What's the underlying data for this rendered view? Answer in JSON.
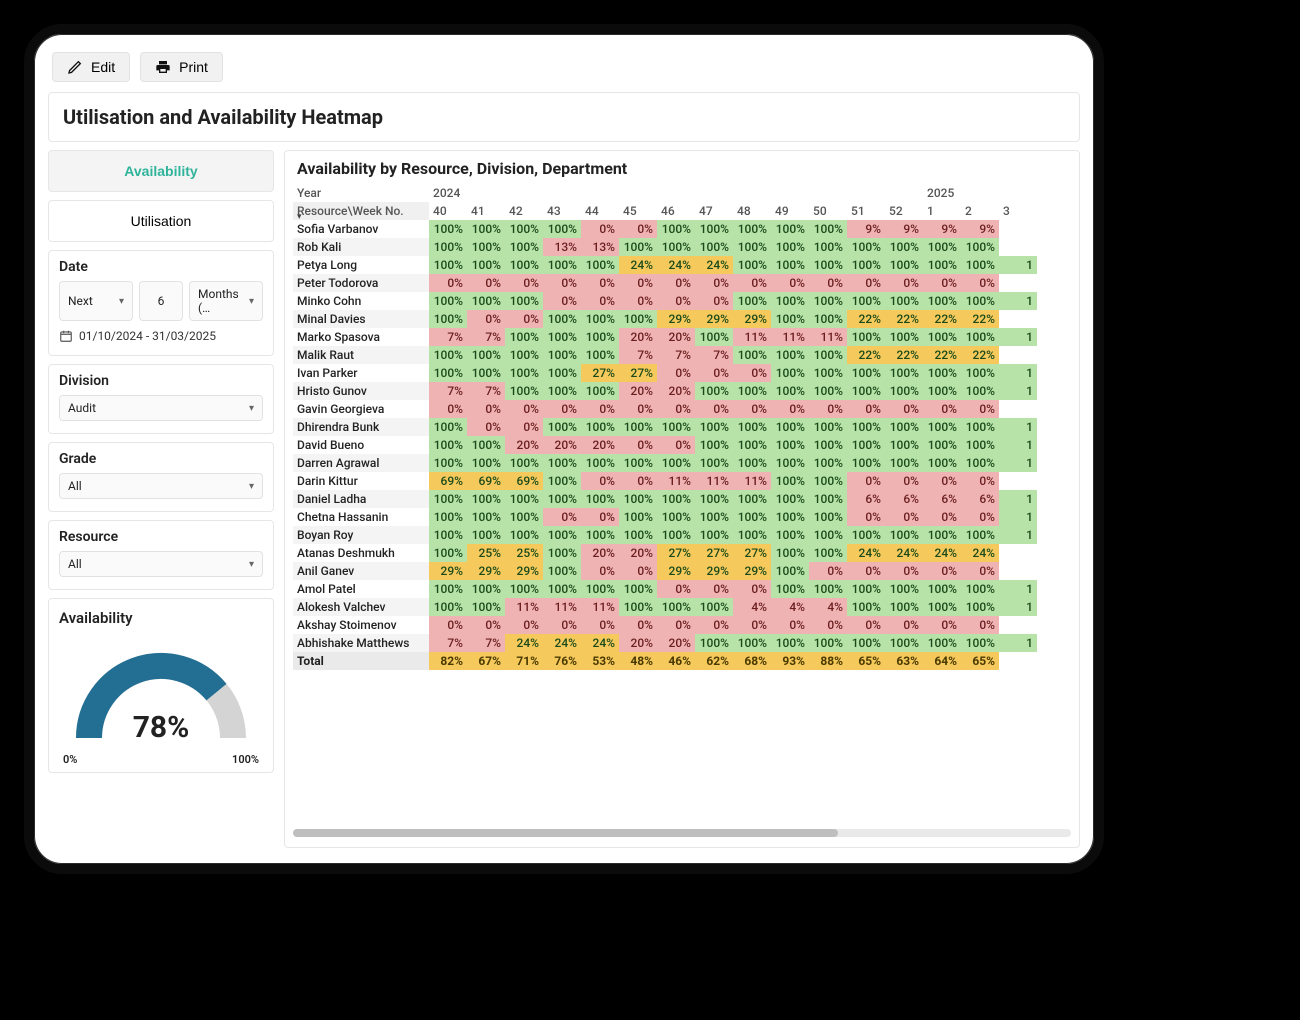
{
  "toolbar": {
    "edit": "Edit",
    "print": "Print"
  },
  "page_title": "Utilisation and Availability Heatmap",
  "tabs": {
    "availability": "Availability",
    "utilisation": "Utilisation",
    "active": "availability"
  },
  "filters": {
    "date_label": "Date",
    "date_rel": "Next",
    "date_n": "6",
    "date_unit": "Months (…",
    "date_range": "01/10/2024 - 31/03/2025",
    "division_label": "Division",
    "division_value": "Audit",
    "grade_label": "Grade",
    "grade_value": "All",
    "resource_label": "Resource",
    "resource_value": "All"
  },
  "gauge": {
    "title": "Availability",
    "value_pct": 78,
    "value_label": "78%",
    "min_label": "0%",
    "max_label": "100%",
    "arc_color": "#226f93",
    "track_color": "#d4d4d4"
  },
  "heatmap": {
    "title": "Availability by Resource, Division, Department",
    "year_label": "Year",
    "rowhead_label": "Resource\\Week No.",
    "years": [
      {
        "label": "2024",
        "span": 13
      },
      {
        "label": "2025",
        "span": 3
      }
    ],
    "weeks": [
      "40",
      "41",
      "42",
      "43",
      "44",
      "45",
      "46",
      "47",
      "48",
      "49",
      "50",
      "51",
      "52",
      "1",
      "2",
      "3"
    ],
    "colors": {
      "green": "#b7e3a8",
      "red": "#f0b3b3",
      "amber": "#f5c95b",
      "text_green": "#1a4a1a",
      "text_red": "#6a1e1e"
    },
    "thresholds": {
      "red_max": 20,
      "amber_max": 70
    },
    "rows": [
      {
        "name": "Sofia Varbanov",
        "vals": [
          100,
          100,
          100,
          100,
          0,
          0,
          100,
          100,
          100,
          100,
          100,
          9,
          9,
          9,
          9,
          null
        ]
      },
      {
        "name": "Rob Kali",
        "vals": [
          100,
          100,
          100,
          13,
          13,
          100,
          100,
          100,
          100,
          100,
          100,
          100,
          100,
          100,
          100,
          null
        ]
      },
      {
        "name": "Petya Long",
        "vals": [
          100,
          100,
          100,
          100,
          100,
          24,
          24,
          24,
          100,
          100,
          100,
          100,
          100,
          100,
          100,
          1
        ]
      },
      {
        "name": "Peter Todorova",
        "vals": [
          0,
          0,
          0,
          0,
          0,
          0,
          0,
          0,
          0,
          0,
          0,
          0,
          0,
          0,
          0,
          null
        ]
      },
      {
        "name": "Minko Cohn",
        "vals": [
          100,
          100,
          100,
          0,
          0,
          0,
          0,
          0,
          100,
          100,
          100,
          100,
          100,
          100,
          100,
          1
        ]
      },
      {
        "name": "Minal Davies",
        "vals": [
          100,
          0,
          0,
          100,
          100,
          100,
          29,
          29,
          29,
          100,
          100,
          22,
          22,
          22,
          22,
          null
        ]
      },
      {
        "name": "Marko Spasova",
        "vals": [
          7,
          7,
          100,
          100,
          100,
          20,
          20,
          100,
          11,
          11,
          11,
          100,
          100,
          100,
          100,
          1
        ]
      },
      {
        "name": "Malik Raut",
        "vals": [
          100,
          100,
          100,
          100,
          100,
          7,
          7,
          7,
          100,
          100,
          100,
          22,
          22,
          22,
          22,
          null
        ]
      },
      {
        "name": "Ivan Parker",
        "vals": [
          100,
          100,
          100,
          100,
          27,
          27,
          0,
          0,
          0,
          100,
          100,
          100,
          100,
          100,
          100,
          1
        ]
      },
      {
        "name": "Hristo Gunov",
        "vals": [
          7,
          7,
          100,
          100,
          100,
          20,
          20,
          100,
          100,
          100,
          100,
          100,
          100,
          100,
          100,
          1
        ]
      },
      {
        "name": "Gavin Georgieva",
        "vals": [
          0,
          0,
          0,
          0,
          0,
          0,
          0,
          0,
          0,
          0,
          0,
          0,
          0,
          0,
          0,
          null
        ]
      },
      {
        "name": "Dhirendra Bunk",
        "vals": [
          100,
          0,
          0,
          100,
          100,
          100,
          100,
          100,
          100,
          100,
          100,
          100,
          100,
          100,
          100,
          1
        ]
      },
      {
        "name": "David Bueno",
        "vals": [
          100,
          100,
          20,
          20,
          20,
          0,
          0,
          100,
          100,
          100,
          100,
          100,
          100,
          100,
          100,
          1
        ]
      },
      {
        "name": "Darren Agrawal",
        "vals": [
          100,
          100,
          100,
          100,
          100,
          100,
          100,
          100,
          100,
          100,
          100,
          100,
          100,
          100,
          100,
          1
        ]
      },
      {
        "name": "Darin Kittur",
        "vals": [
          69,
          69,
          69,
          100,
          0,
          0,
          11,
          11,
          11,
          100,
          100,
          0,
          0,
          0,
          0,
          null
        ]
      },
      {
        "name": "Daniel Ladha",
        "vals": [
          100,
          100,
          100,
          100,
          100,
          100,
          100,
          100,
          100,
          100,
          100,
          6,
          6,
          6,
          6,
          1
        ]
      },
      {
        "name": "Chetna Hassanin",
        "vals": [
          100,
          100,
          100,
          0,
          0,
          100,
          100,
          100,
          100,
          100,
          100,
          0,
          0,
          0,
          0,
          1
        ]
      },
      {
        "name": "Boyan Roy",
        "vals": [
          100,
          100,
          100,
          100,
          100,
          100,
          100,
          100,
          100,
          100,
          100,
          100,
          100,
          100,
          100,
          1
        ]
      },
      {
        "name": "Atanas Deshmukh",
        "vals": [
          100,
          25,
          25,
          100,
          20,
          20,
          27,
          27,
          27,
          100,
          100,
          24,
          24,
          24,
          24,
          null
        ]
      },
      {
        "name": "Anil Ganev",
        "vals": [
          29,
          29,
          29,
          100,
          0,
          0,
          29,
          29,
          29,
          100,
          0,
          0,
          0,
          0,
          0,
          null
        ]
      },
      {
        "name": "Amol Patel",
        "vals": [
          100,
          100,
          100,
          100,
          100,
          100,
          0,
          0,
          0,
          100,
          100,
          100,
          100,
          100,
          100,
          1
        ]
      },
      {
        "name": "Alokesh Valchev",
        "vals": [
          100,
          100,
          11,
          11,
          11,
          100,
          100,
          100,
          4,
          4,
          4,
          100,
          100,
          100,
          100,
          1
        ]
      },
      {
        "name": "Akshay Stoimenov",
        "vals": [
          0,
          0,
          0,
          0,
          0,
          0,
          0,
          0,
          0,
          0,
          0,
          0,
          0,
          0,
          0,
          null
        ]
      },
      {
        "name": "Abhishake Matthews",
        "vals": [
          7,
          7,
          24,
          24,
          24,
          20,
          20,
          100,
          100,
          100,
          100,
          100,
          100,
          100,
          100,
          1
        ]
      }
    ],
    "total": {
      "name": "Total",
      "vals": [
        82,
        67,
        71,
        76,
        53,
        48,
        46,
        62,
        68,
        93,
        88,
        65,
        63,
        64,
        65,
        null
      ]
    }
  }
}
